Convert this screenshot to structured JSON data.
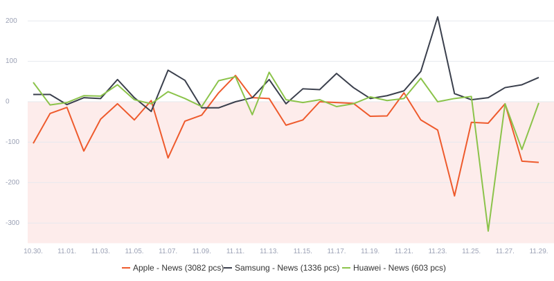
{
  "chart_data": {
    "type": "line",
    "categories": [
      "10.30.",
      null,
      "11.01.",
      null,
      "11.03.",
      null,
      "11.05.",
      null,
      "11.07.",
      null,
      "11.09.",
      null,
      "11.11.",
      null,
      "11.13.",
      null,
      "11.15.",
      null,
      "11.17.",
      null,
      "11.19.",
      null,
      "11.21.",
      null,
      "11.23.",
      null,
      "11.25.",
      null,
      "11.27.",
      null,
      "11.29."
    ],
    "series": [
      {
        "name": "Apple - News (3082 pcs)",
        "color": "#ee5a2c",
        "values": [
          -103,
          -29,
          -14,
          -122,
          -43,
          -5,
          -45,
          3,
          -139,
          -48,
          -33,
          22,
          65,
          10,
          8,
          -58,
          -45,
          0,
          -2,
          -4,
          -36,
          -35,
          22,
          -45,
          -70,
          -233,
          -51,
          -53,
          -5,
          -147,
          -150
        ]
      },
      {
        "name": "Samsung - News (1336 pcs)",
        "color": "#3a3f4c",
        "values": [
          18,
          18,
          -7,
          10,
          8,
          55,
          10,
          -24,
          78,
          53,
          -15,
          -15,
          0,
          10,
          55,
          -5,
          32,
          30,
          70,
          35,
          8,
          15,
          27,
          75,
          210,
          20,
          5,
          10,
          35,
          42,
          60
        ]
      },
      {
        "name": "Huawei - News (603 pcs)",
        "color": "#8bc34a",
        "values": [
          48,
          -8,
          -2,
          15,
          14,
          42,
          5,
          -5,
          25,
          8,
          -12,
          52,
          62,
          -32,
          73,
          5,
          -2,
          5,
          -12,
          -5,
          12,
          3,
          8,
          58,
          0,
          8,
          13,
          -320,
          -5,
          -118,
          -3
        ]
      }
    ],
    "ylim": [
      -350,
      210
    ],
    "yticks": [
      -300,
      -200,
      -100,
      0,
      100,
      200
    ],
    "grid": true,
    "legend": "bottom"
  }
}
